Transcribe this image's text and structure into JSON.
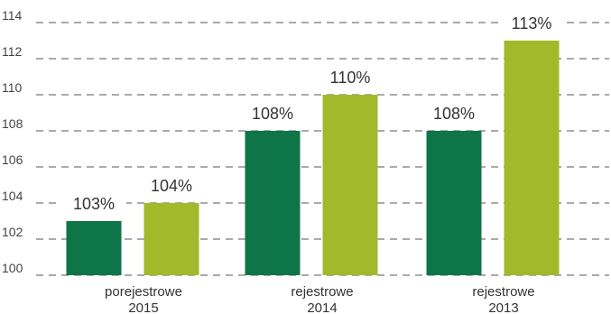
{
  "colors": {
    "series_dark": "#0e7548",
    "series_light": "#a2b92b"
  },
  "chart_data": {
    "type": "bar",
    "categories": [
      [
        "porejestrowe",
        "2015"
      ],
      [
        "rejestrowe",
        "2014"
      ],
      [
        "rejestrowe",
        "2013"
      ]
    ],
    "series": [
      {
        "values": [
          103,
          108,
          108
        ],
        "labels": [
          "103%",
          "108%",
          "108%"
        ]
      },
      {
        "values": [
          104,
          110,
          113
        ],
        "labels": [
          "104%",
          "110%",
          "113%"
        ]
      }
    ],
    "ylim": [
      100,
      114
    ],
    "yticks": [
      100,
      102,
      104,
      106,
      108,
      110,
      112,
      114
    ],
    "grid": true,
    "legend": "none",
    "title": "",
    "xlabel": "",
    "ylabel": ""
  }
}
